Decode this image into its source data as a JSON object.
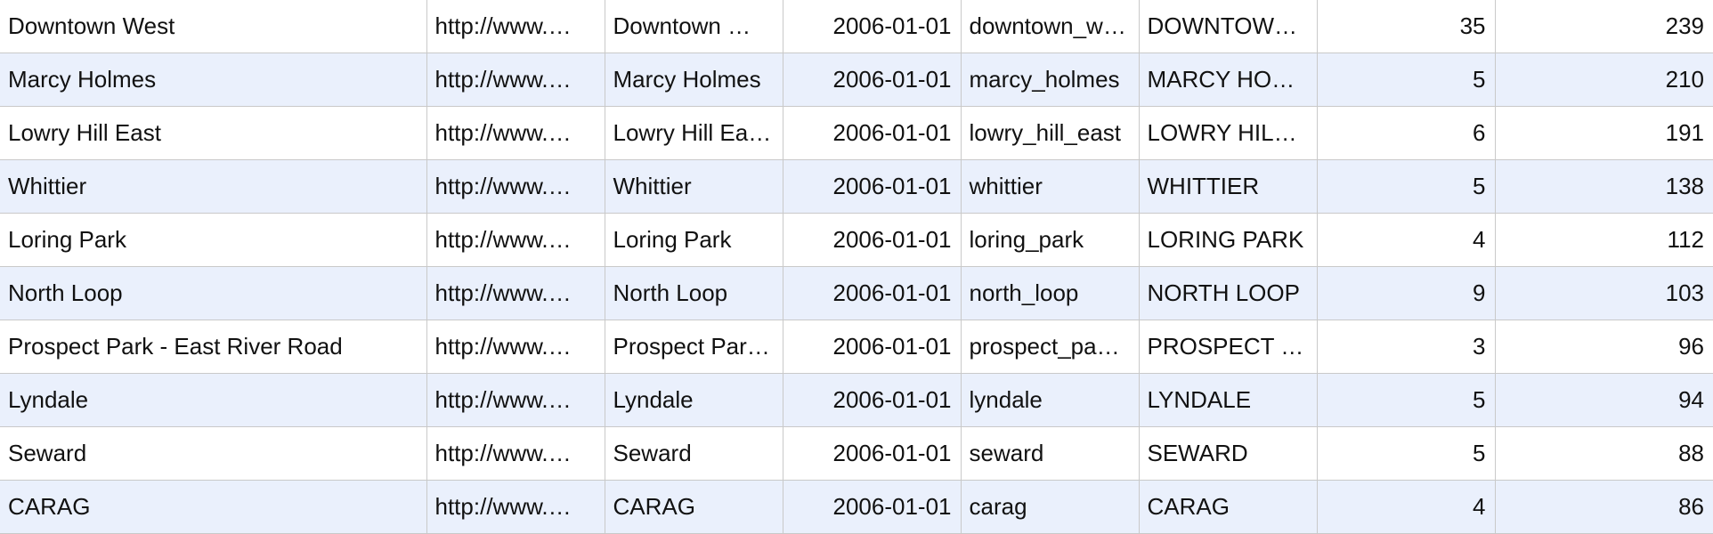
{
  "table": {
    "rows": [
      [
        "Downtown West",
        "http://www.…",
        "Downtown …",
        "2006-01-01",
        "downtown_w…",
        "DOWNTOW…",
        "35",
        "239"
      ],
      [
        "Marcy Holmes",
        "http://www.…",
        "Marcy Holmes",
        "2006-01-01",
        "marcy_holmes",
        "MARCY HOL…",
        "5",
        "210"
      ],
      [
        "Lowry Hill East",
        "http://www.…",
        "Lowry Hill Ea…",
        "2006-01-01",
        "lowry_hill_east",
        "LOWRY HILL…",
        "6",
        "191"
      ],
      [
        "Whittier",
        "http://www.…",
        "Whittier",
        "2006-01-01",
        "whittier",
        "WHITTIER",
        "5",
        "138"
      ],
      [
        "Loring Park",
        "http://www.…",
        "Loring Park",
        "2006-01-01",
        "loring_park",
        "LORING PARK",
        "4",
        "112"
      ],
      [
        "North Loop",
        "http://www.…",
        "North Loop",
        "2006-01-01",
        "north_loop",
        "NORTH LOOP",
        "9",
        "103"
      ],
      [
        "Prospect Park - East River Road",
        "http://www.…",
        "Prospect Par…",
        "2006-01-01",
        "prospect_pa…",
        "PROSPECT …",
        "3",
        "96"
      ],
      [
        "Lyndale",
        "http://www.…",
        "Lyndale",
        "2006-01-01",
        "lyndale",
        "LYNDALE",
        "5",
        "94"
      ],
      [
        "Seward",
        "http://www.…",
        "Seward",
        "2006-01-01",
        "seward",
        "SEWARD",
        "5",
        "88"
      ],
      [
        "CARAG",
        "http://www.…",
        "CARAG",
        "2006-01-01",
        "carag",
        "CARAG",
        "4",
        "86"
      ]
    ]
  }
}
